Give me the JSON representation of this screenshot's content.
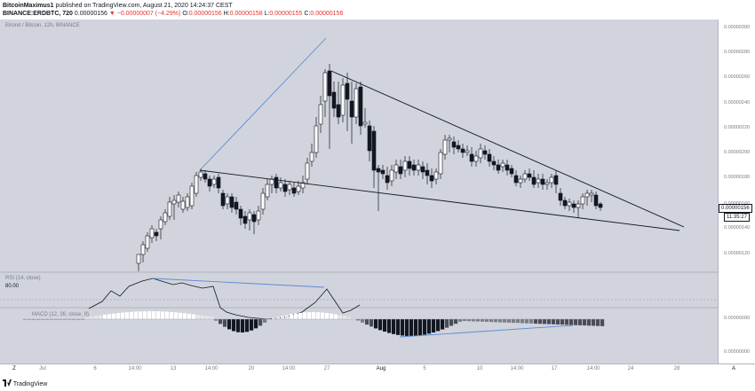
{
  "header": {
    "publisher": "BitcoinMaximus1",
    "published_text": " published on TradingView.com, August 21, 2020 14:24:37 CEST",
    "symbol": "BINANCE:ERDBTC, 720",
    "price": "0.00000156",
    "change_icon": "down-triangle-icon",
    "change_text": "▼ −0.00000007 (−4.29%)",
    "o_label": "O:",
    "o_value": "0.00000156",
    "h_label": "H:",
    "h_value": "0.00000158",
    "l_label": "L:",
    "l_value": "0.00000155",
    "c_label": "C:",
    "c_value": "0.00000156"
  },
  "chart": {
    "pair_label": "Elrond / Bitcoin, 12h, BINANCE",
    "price_ticks": [
      "0.00000300",
      "0.00000280",
      "0.00000260",
      "0.00000240",
      "0.00000220",
      "0.00000200",
      "0.00000180",
      "0.00000160",
      "0.00000140",
      "0.00000120"
    ],
    "current_price": "0.00000156",
    "countdown": "11:35:27",
    "rsi_label": "RSI (14, close)",
    "rsi_level": "80.00",
    "macd_label": "MACD (12, 26, close, 9)",
    "macd_ticks": [
      "0.00000000",
      "0.00000000"
    ],
    "time_ticks": [
      "Jul",
      "6",
      "14:00",
      "13",
      "14:00",
      "20",
      "14:00",
      "27",
      "Aug",
      "5",
      "10",
      "14:00",
      "17",
      "14:00",
      "24",
      "28"
    ],
    "axis_corner": "A",
    "left_corner": "Z"
  },
  "colors": {
    "panel_bg": "#d1d4dc",
    "trendline": "#131722",
    "blue_line": "#5b8bd8",
    "up_candle": "#ffffff",
    "down_candle": "#131722"
  },
  "footer": {
    "logo_text": "TradingView",
    "logo_icon": "tradingview-logo-icon"
  }
}
